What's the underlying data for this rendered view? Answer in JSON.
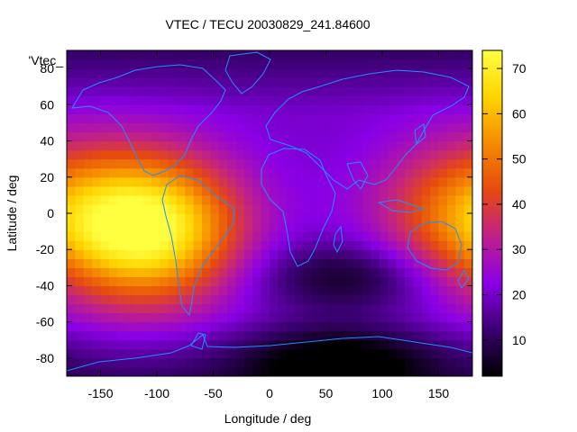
{
  "chart_data": {
    "type": "heatmap",
    "title": "VTEC / TECU 20030829_241.84600",
    "xlabel": "Longitude / deg",
    "ylabel": "Latitude / deg",
    "key_label": "'Vtec_",
    "xlim": [
      -180,
      180
    ],
    "ylim": [
      -90,
      90
    ],
    "x_ticks": [
      -150,
      -100,
      -50,
      0,
      50,
      100,
      150
    ],
    "y_ticks": [
      -80,
      -60,
      -40,
      -20,
      0,
      20,
      40,
      60,
      80
    ],
    "colorbar": {
      "range": [
        2,
        74
      ],
      "ticks": [
        10,
        20,
        30,
        40,
        50,
        60,
        70
      ],
      "palette": [
        "#000000",
        "#3a0070",
        "#8a00e6",
        "#c0208a",
        "#e64a10",
        "#f58a00",
        "#ffd400",
        "#ffff40"
      ]
    },
    "features": [
      {
        "name": "equatorial anomaly Pacific/Americas",
        "lon": -105,
        "lat": -8,
        "value": 72
      },
      {
        "name": "equatorial anomaly West Pacific",
        "lon": 170,
        "lat": 0,
        "value": 45
      },
      {
        "name": "low TEC Indian Ocean",
        "lon": 70,
        "lat": -35,
        "value": 5
      },
      {
        "name": "low TEC Antarctica",
        "lon": 60,
        "lat": -82,
        "value": 3
      }
    ]
  }
}
